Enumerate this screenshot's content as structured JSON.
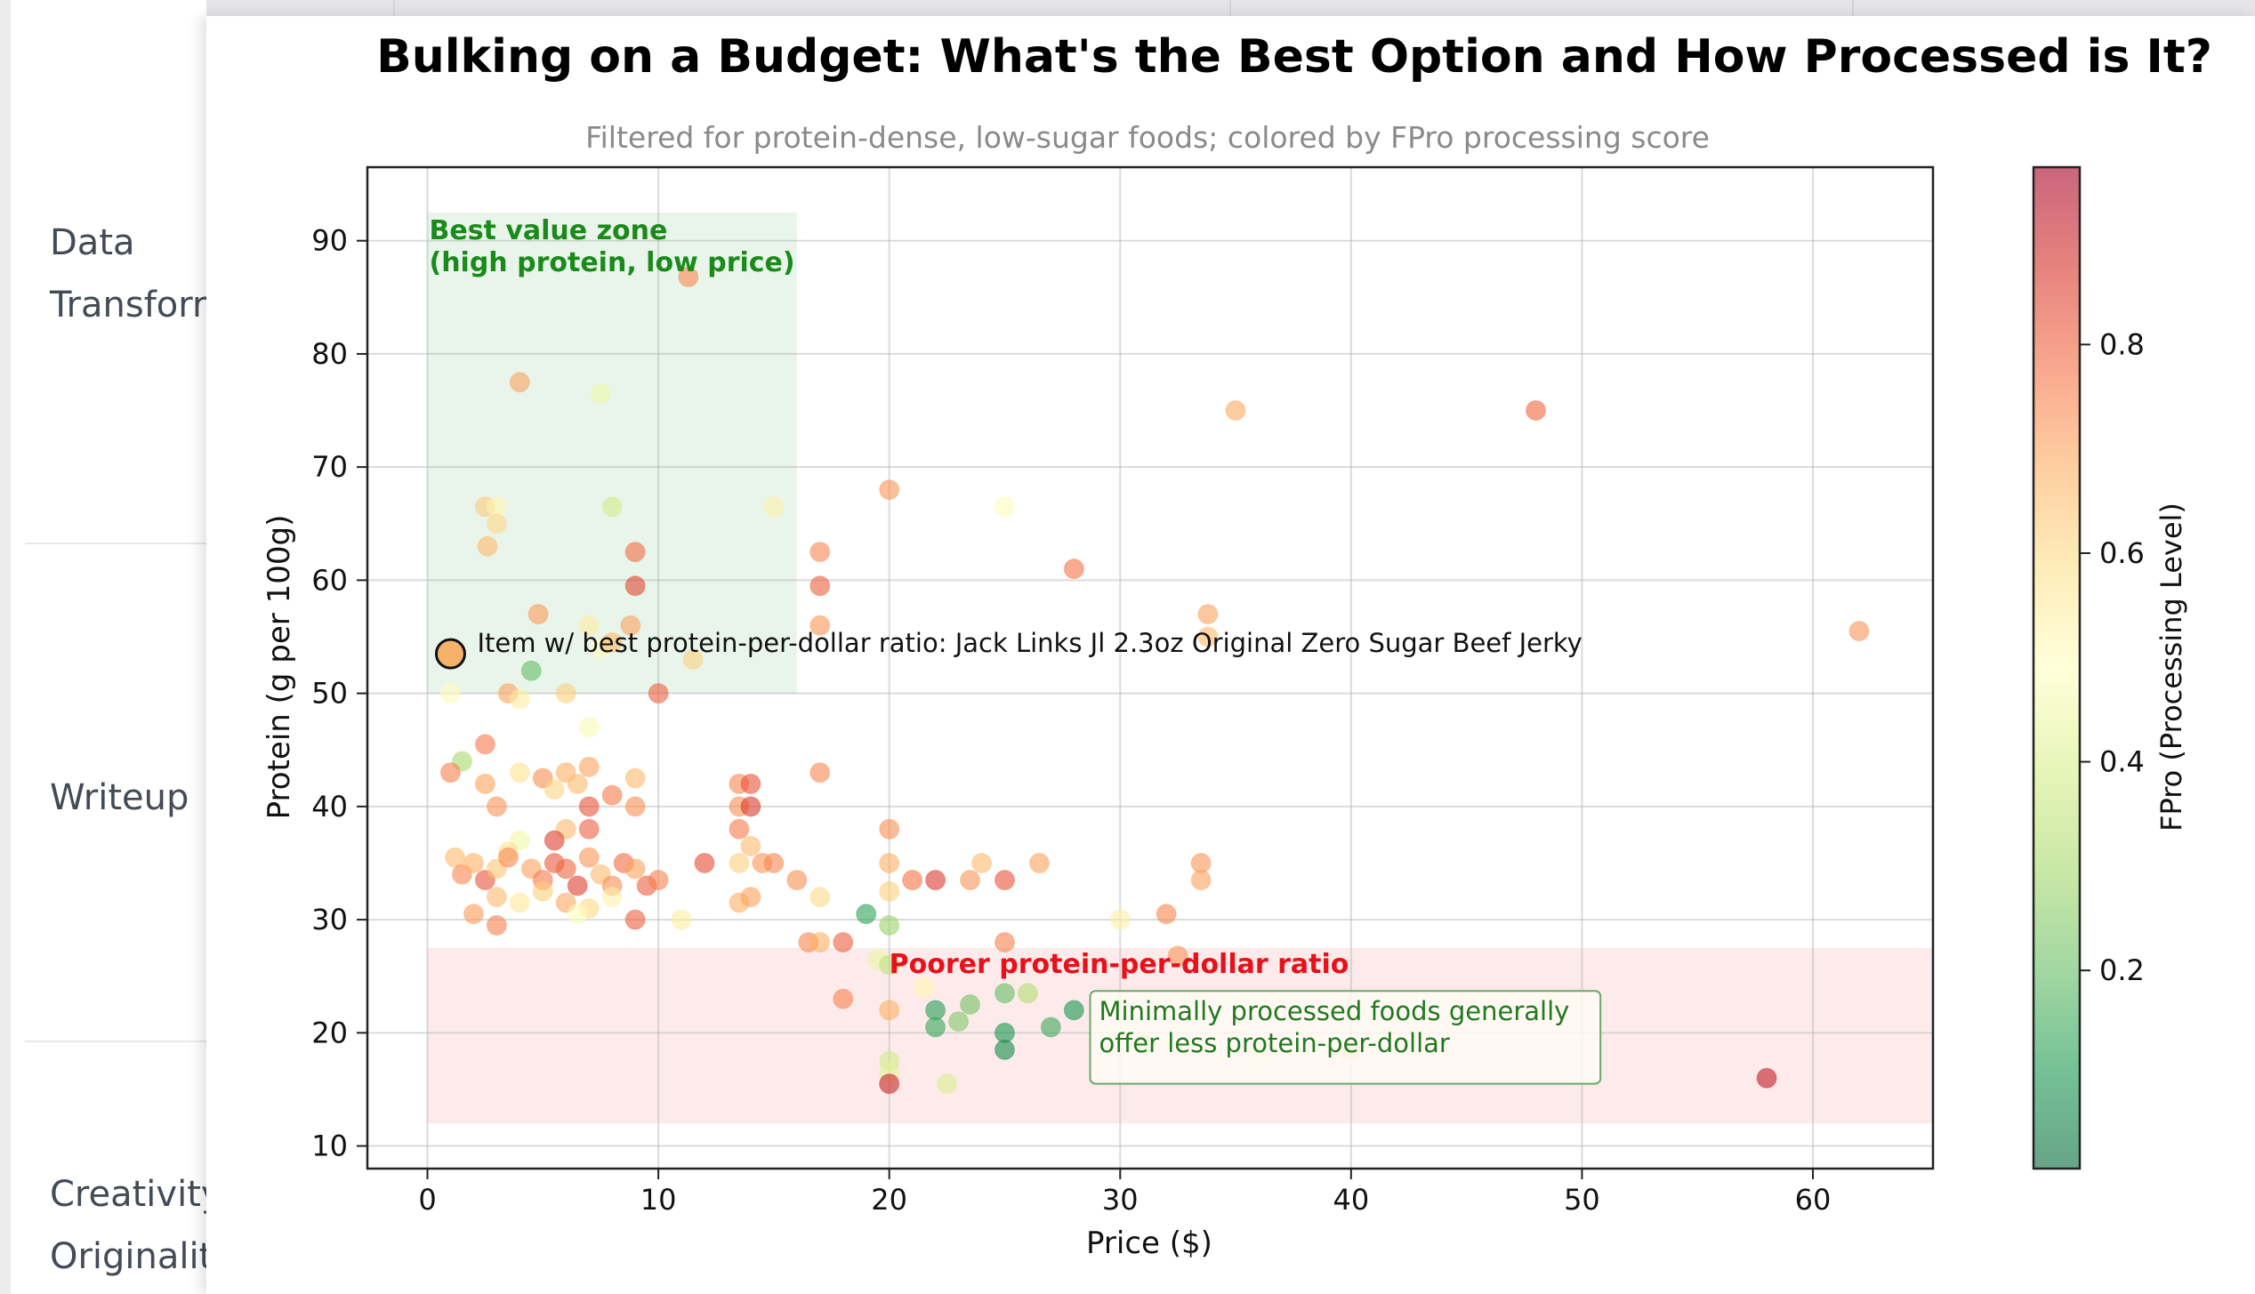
{
  "background": {
    "nav_labels": [
      "Data\nTransforr",
      "Writeup",
      "Creativity\nOriginalit"
    ]
  },
  "chart_data": {
    "type": "scatter",
    "title": "Bulking on a Budget: What's the Best Option and How Processed is It?",
    "subtitle": "Filtered for protein-dense, low-sugar foods; colored by FPro processing score",
    "xlabel": "Price ($)",
    "ylabel": "Protein (g per 100g)",
    "xlim": [
      -2.6,
      65.2
    ],
    "ylim": [
      8,
      96.5
    ],
    "x_ticks": [
      0,
      10,
      20,
      30,
      40,
      50,
      60
    ],
    "y_ticks": [
      10,
      20,
      30,
      40,
      50,
      60,
      70,
      80,
      90
    ],
    "grid": true,
    "colorbar": {
      "label": "FPro (Processing Level)",
      "range": [
        0.01,
        0.97
      ],
      "ticks": [
        0.2,
        0.4,
        0.6,
        0.8
      ],
      "colormap": [
        "#006837",
        "#1a9850",
        "#66bd63",
        "#a6d96a",
        "#d9ef8b",
        "#ffffbf",
        "#fee08b",
        "#fdae61",
        "#f46d43",
        "#d73027",
        "#a50026"
      ]
    },
    "regions": [
      {
        "name": "Best value zone",
        "label_line1": "Best value zone",
        "label_line2": "(high protein, low price)",
        "x": [
          0,
          16
        ],
        "y": [
          50,
          92.5
        ],
        "color": "#4caf50",
        "text_color": "#1a8a1a"
      },
      {
        "name": "Poorer protein-per-dollar ratio",
        "label_line1": "Poorer protein-per-dollar ratio",
        "x": [
          0,
          65.2
        ],
        "y": [
          12,
          27.5
        ],
        "color": "#f08080",
        "text_color": "#e8101a"
      }
    ],
    "best_item": {
      "label": "Item w/ best protein-per-dollar ratio: Jack Links Jl 2.3oz Original Zero Sugar Beef Jerky",
      "x": 1.0,
      "y": 53.5,
      "fpro": 0.66
    },
    "note": {
      "line1": "Minimally processed foods generally",
      "line2": "offer less protein-per-dollar"
    },
    "points": [
      [
        2.5,
        66.5,
        0.63
      ],
      [
        3.0,
        66.5,
        0.52
      ],
      [
        2.6,
        63.0,
        0.66
      ],
      [
        3.0,
        65.0,
        0.6
      ],
      [
        4.0,
        77.5,
        0.7
      ],
      [
        7.5,
        76.5,
        0.45
      ],
      [
        8.0,
        66.5,
        0.38
      ],
      [
        11.3,
        86.8,
        0.74
      ],
      [
        15.0,
        66.5,
        0.53
      ],
      [
        9.0,
        62.5,
        0.78
      ],
      [
        9.0,
        59.5,
        0.84
      ],
      [
        8.8,
        56.0,
        0.7
      ],
      [
        4.8,
        57.0,
        0.71
      ],
      [
        7.0,
        56.0,
        0.55
      ],
      [
        7.5,
        54.0,
        0.5
      ],
      [
        8.0,
        54.5,
        0.66
      ],
      [
        11.5,
        53.0,
        0.62
      ],
      [
        10.0,
        50.0,
        0.8
      ],
      [
        4.5,
        52.0,
        0.2
      ],
      [
        3.5,
        50.0,
        0.7
      ],
      [
        4.0,
        49.5,
        0.55
      ],
      [
        6.0,
        50.0,
        0.62
      ],
      [
        7.0,
        47.0,
        0.47
      ],
      [
        1.0,
        50.0,
        0.5
      ],
      [
        17.0,
        62.5,
        0.74
      ],
      [
        17.0,
        59.5,
        0.8
      ],
      [
        17.0,
        56.0,
        0.72
      ],
      [
        20.0,
        68.0,
        0.72
      ],
      [
        25.0,
        66.5,
        0.5
      ],
      [
        28.0,
        61.0,
        0.77
      ],
      [
        33.8,
        57.0,
        0.7
      ],
      [
        33.8,
        55.0,
        0.66
      ],
      [
        35.0,
        75.0,
        0.69
      ],
      [
        48.0,
        75.0,
        0.79
      ],
      [
        62.0,
        55.5,
        0.72
      ],
      [
        1.5,
        44.0,
        0.3
      ],
      [
        1.0,
        43.0,
        0.75
      ],
      [
        2.5,
        45.5,
        0.76
      ],
      [
        2.5,
        42.0,
        0.7
      ],
      [
        3.0,
        40.0,
        0.72
      ],
      [
        4.0,
        43.0,
        0.58
      ],
      [
        5.0,
        42.5,
        0.73
      ],
      [
        5.5,
        41.5,
        0.61
      ],
      [
        6.0,
        43.0,
        0.68
      ],
      [
        6.5,
        42.0,
        0.66
      ],
      [
        7.0,
        43.5,
        0.7
      ],
      [
        7.0,
        40.0,
        0.82
      ],
      [
        8.0,
        41.0,
        0.76
      ],
      [
        9.0,
        42.5,
        0.66
      ],
      [
        9.0,
        40.0,
        0.73
      ],
      [
        6.0,
        38.0,
        0.66
      ],
      [
        7.0,
        38.0,
        0.8
      ],
      [
        5.5,
        37.0,
        0.85
      ],
      [
        4.0,
        37.0,
        0.45
      ],
      [
        3.5,
        36.0,
        0.58
      ],
      [
        1.2,
        35.5,
        0.66
      ],
      [
        1.5,
        34.0,
        0.74
      ],
      [
        2.0,
        35.0,
        0.68
      ],
      [
        2.5,
        33.5,
        0.82
      ],
      [
        3.0,
        34.5,
        0.64
      ],
      [
        3.5,
        35.5,
        0.74
      ],
      [
        4.5,
        34.5,
        0.7
      ],
      [
        5.0,
        33.5,
        0.76
      ],
      [
        5.5,
        35.0,
        0.81
      ],
      [
        6.0,
        34.5,
        0.79
      ],
      [
        6.5,
        33.0,
        0.85
      ],
      [
        7.0,
        35.5,
        0.72
      ],
      [
        7.5,
        34.0,
        0.66
      ],
      [
        8.0,
        33.0,
        0.73
      ],
      [
        8.5,
        35.0,
        0.78
      ],
      [
        9.0,
        34.5,
        0.7
      ],
      [
        9.5,
        33.0,
        0.8
      ],
      [
        10.0,
        33.5,
        0.75
      ],
      [
        3.0,
        32.0,
        0.66
      ],
      [
        4.0,
        31.5,
        0.56
      ],
      [
        5.0,
        32.5,
        0.62
      ],
      [
        6.0,
        31.5,
        0.69
      ],
      [
        7.0,
        31.0,
        0.6
      ],
      [
        8.0,
        32.0,
        0.53
      ],
      [
        9.0,
        30.0,
        0.8
      ],
      [
        6.5,
        30.5,
        0.48
      ],
      [
        2.0,
        30.5,
        0.71
      ],
      [
        3.0,
        29.5,
        0.75
      ],
      [
        13.5,
        42.0,
        0.74
      ],
      [
        14.0,
        42.0,
        0.82
      ],
      [
        13.5,
        40.0,
        0.73
      ],
      [
        14.0,
        40.0,
        0.86
      ],
      [
        13.5,
        38.0,
        0.76
      ],
      [
        14.0,
        36.5,
        0.66
      ],
      [
        12.0,
        35.0,
        0.83
      ],
      [
        13.5,
        35.0,
        0.62
      ],
      [
        14.5,
        35.0,
        0.72
      ],
      [
        15.0,
        35.0,
        0.74
      ],
      [
        16.0,
        33.5,
        0.73
      ],
      [
        13.5,
        31.5,
        0.68
      ],
      [
        14.0,
        32.0,
        0.7
      ],
      [
        17.0,
        43.0,
        0.74
      ],
      [
        11.0,
        30.0,
        0.55
      ],
      [
        17.0,
        32.0,
        0.6
      ],
      [
        20.0,
        38.0,
        0.73
      ],
      [
        20.0,
        35.0,
        0.68
      ],
      [
        20.0,
        32.5,
        0.62
      ],
      [
        21.0,
        33.5,
        0.77
      ],
      [
        22.0,
        33.5,
        0.86
      ],
      [
        23.5,
        33.5,
        0.72
      ],
      [
        24.0,
        35.0,
        0.66
      ],
      [
        25.0,
        33.5,
        0.82
      ],
      [
        26.5,
        35.0,
        0.7
      ],
      [
        33.5,
        35.0,
        0.72
      ],
      [
        33.5,
        33.5,
        0.7
      ],
      [
        32.0,
        30.5,
        0.74
      ],
      [
        30.0,
        30.0,
        0.54
      ],
      [
        25.0,
        28.0,
        0.75
      ],
      [
        32.5,
        26.8,
        0.72
      ],
      [
        16.5,
        28.0,
        0.74
      ],
      [
        17.0,
        28.0,
        0.68
      ],
      [
        18.0,
        28.0,
        0.8
      ],
      [
        19.5,
        26.5,
        0.44
      ],
      [
        20.0,
        26.0,
        0.34
      ],
      [
        19.0,
        30.5,
        0.13
      ],
      [
        20.0,
        29.5,
        0.28
      ],
      [
        21.5,
        24.0,
        0.52
      ],
      [
        18.0,
        23.0,
        0.75
      ],
      [
        20.0,
        22.0,
        0.68
      ],
      [
        22.0,
        22.0,
        0.12
      ],
      [
        23.5,
        22.5,
        0.22
      ],
      [
        25.0,
        23.5,
        0.2
      ],
      [
        26.0,
        23.5,
        0.32
      ],
      [
        28.0,
        22.0,
        0.1
      ],
      [
        27.0,
        20.5,
        0.15
      ],
      [
        25.0,
        20.0,
        0.1
      ],
      [
        25.0,
        18.5,
        0.08
      ],
      [
        22.0,
        20.5,
        0.14
      ],
      [
        23.0,
        21.0,
        0.24
      ],
      [
        30.0,
        20.0,
        0.48
      ],
      [
        31.0,
        19.0,
        0.3
      ],
      [
        36.0,
        18.0,
        0.45
      ],
      [
        40.0,
        18.5,
        0.66
      ],
      [
        58.0,
        16.0,
        0.92
      ],
      [
        22.5,
        15.5,
        0.4
      ],
      [
        20.0,
        17.5,
        0.38
      ],
      [
        20.0,
        16.5,
        0.42
      ],
      [
        20.0,
        15.5,
        0.9
      ]
    ]
  }
}
